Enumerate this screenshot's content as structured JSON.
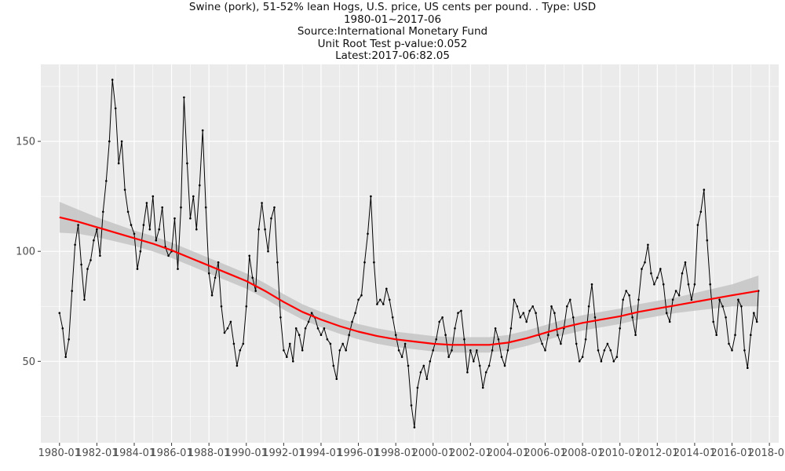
{
  "chart_data": {
    "type": "line",
    "title_lines": [
      "Swine (pork), 51-52% lean Hogs, U.S. price, US cents per pound. . Type: USD",
      "1980-01~2017-06",
      "Source:International Monetary Fund",
      "Unit Root Test p-value:0.052",
      "Latest:2017-06:82.05"
    ],
    "xlabel": "",
    "ylabel": "",
    "x_range": [
      "1979-01",
      "2018-07"
    ],
    "ylim": [
      13,
      185
    ],
    "y_ticks": [
      50,
      100,
      150
    ],
    "x_ticks": [
      "1980-01",
      "1982-01",
      "1984-01",
      "1986-01",
      "1988-01",
      "1990-01",
      "1992-01",
      "1994-01",
      "1996-01",
      "1998-01",
      "2000-01",
      "2002-01",
      "2004-01",
      "2006-01",
      "2008-01",
      "2010-01",
      "2012-01",
      "2014-01",
      "2016-01",
      "2018-01"
    ],
    "series": [
      {
        "style": "black line with point markers",
        "color": "#000000",
        "points": [
          [
            "1980-01",
            72
          ],
          [
            "1980-03",
            65
          ],
          [
            "1980-05",
            52
          ],
          [
            "1980-07",
            60
          ],
          [
            "1980-09",
            82
          ],
          [
            "1980-11",
            103
          ],
          [
            "1981-01",
            112
          ],
          [
            "1981-03",
            94
          ],
          [
            "1981-05",
            78
          ],
          [
            "1981-07",
            92
          ],
          [
            "1981-09",
            96
          ],
          [
            "1981-11",
            105
          ],
          [
            "1982-01",
            110
          ],
          [
            "1982-03",
            98
          ],
          [
            "1982-05",
            118
          ],
          [
            "1982-07",
            132
          ],
          [
            "1982-09",
            150
          ],
          [
            "1982-11",
            178
          ],
          [
            "1983-01",
            165
          ],
          [
            "1983-03",
            140
          ],
          [
            "1983-05",
            150
          ],
          [
            "1983-07",
            128
          ],
          [
            "1983-09",
            118
          ],
          [
            "1983-11",
            112
          ],
          [
            "1984-01",
            108
          ],
          [
            "1984-03",
            92
          ],
          [
            "1984-05",
            100
          ],
          [
            "1984-07",
            112
          ],
          [
            "1984-09",
            122
          ],
          [
            "1984-11",
            110
          ],
          [
            "1985-01",
            125
          ],
          [
            "1985-03",
            105
          ],
          [
            "1985-05",
            110
          ],
          [
            "1985-07",
            120
          ],
          [
            "1985-09",
            102
          ],
          [
            "1985-11",
            98
          ],
          [
            "1986-01",
            100
          ],
          [
            "1986-03",
            115
          ],
          [
            "1986-05",
            92
          ],
          [
            "1986-07",
            120
          ],
          [
            "1986-09",
            170
          ],
          [
            "1986-11",
            140
          ],
          [
            "1987-01",
            115
          ],
          [
            "1987-03",
            125
          ],
          [
            "1987-05",
            110
          ],
          [
            "1987-07",
            130
          ],
          [
            "1987-09",
            155
          ],
          [
            "1987-11",
            120
          ],
          [
            "1988-01",
            90
          ],
          [
            "1988-03",
            80
          ],
          [
            "1988-05",
            88
          ],
          [
            "1988-07",
            95
          ],
          [
            "1988-09",
            75
          ],
          [
            "1988-11",
            63
          ],
          [
            "1989-01",
            65
          ],
          [
            "1989-03",
            68
          ],
          [
            "1989-05",
            58
          ],
          [
            "1989-07",
            48
          ],
          [
            "1989-09",
            55
          ],
          [
            "1989-11",
            58
          ],
          [
            "1990-01",
            75
          ],
          [
            "1990-03",
            98
          ],
          [
            "1990-05",
            88
          ],
          [
            "1990-07",
            82
          ],
          [
            "1990-09",
            110
          ],
          [
            "1990-11",
            122
          ],
          [
            "1991-01",
            110
          ],
          [
            "1991-03",
            100
          ],
          [
            "1991-05",
            115
          ],
          [
            "1991-07",
            120
          ],
          [
            "1991-09",
            95
          ],
          [
            "1991-11",
            70
          ],
          [
            "1992-01",
            55
          ],
          [
            "1992-03",
            52
          ],
          [
            "1992-05",
            58
          ],
          [
            "1992-07",
            50
          ],
          [
            "1992-09",
            65
          ],
          [
            "1992-11",
            62
          ],
          [
            "1993-01",
            55
          ],
          [
            "1993-03",
            65
          ],
          [
            "1993-05",
            68
          ],
          [
            "1993-07",
            72
          ],
          [
            "1993-09",
            70
          ],
          [
            "1993-11",
            65
          ],
          [
            "1994-01",
            62
          ],
          [
            "1994-03",
            65
          ],
          [
            "1994-05",
            60
          ],
          [
            "1994-07",
            58
          ],
          [
            "1994-09",
            48
          ],
          [
            "1994-11",
            42
          ],
          [
            "1995-01",
            55
          ],
          [
            "1995-03",
            58
          ],
          [
            "1995-05",
            55
          ],
          [
            "1995-07",
            62
          ],
          [
            "1995-09",
            68
          ],
          [
            "1995-11",
            72
          ],
          [
            "1996-01",
            78
          ],
          [
            "1996-03",
            80
          ],
          [
            "1996-05",
            95
          ],
          [
            "1996-07",
            108
          ],
          [
            "1996-09",
            125
          ],
          [
            "1996-11",
            95
          ],
          [
            "1997-01",
            76
          ],
          [
            "1997-03",
            78
          ],
          [
            "1997-05",
            76
          ],
          [
            "1997-07",
            83
          ],
          [
            "1997-09",
            78
          ],
          [
            "1997-11",
            70
          ],
          [
            "1998-01",
            62
          ],
          [
            "1998-03",
            55
          ],
          [
            "1998-05",
            52
          ],
          [
            "1998-07",
            58
          ],
          [
            "1998-09",
            48
          ],
          [
            "1998-11",
            30
          ],
          [
            "1999-01",
            20
          ],
          [
            "1999-03",
            38
          ],
          [
            "1999-05",
            45
          ],
          [
            "1999-07",
            48
          ],
          [
            "1999-09",
            42
          ],
          [
            "1999-11",
            50
          ],
          [
            "2000-01",
            55
          ],
          [
            "2000-03",
            60
          ],
          [
            "2000-05",
            68
          ],
          [
            "2000-07",
            70
          ],
          [
            "2000-09",
            62
          ],
          [
            "2000-11",
            52
          ],
          [
            "2001-01",
            55
          ],
          [
            "2001-03",
            65
          ],
          [
            "2001-05",
            72
          ],
          [
            "2001-07",
            73
          ],
          [
            "2001-09",
            60
          ],
          [
            "2001-11",
            45
          ],
          [
            "2002-01",
            55
          ],
          [
            "2002-03",
            50
          ],
          [
            "2002-05",
            55
          ],
          [
            "2002-07",
            48
          ],
          [
            "2002-09",
            38
          ],
          [
            "2002-11",
            45
          ],
          [
            "2003-01",
            48
          ],
          [
            "2003-03",
            55
          ],
          [
            "2003-05",
            65
          ],
          [
            "2003-07",
            60
          ],
          [
            "2003-09",
            52
          ],
          [
            "2003-11",
            48
          ],
          [
            "2004-01",
            55
          ],
          [
            "2004-03",
            65
          ],
          [
            "2004-05",
            78
          ],
          [
            "2004-07",
            75
          ],
          [
            "2004-09",
            70
          ],
          [
            "2004-11",
            72
          ],
          [
            "2005-01",
            68
          ],
          [
            "2005-03",
            73
          ],
          [
            "2005-05",
            75
          ],
          [
            "2005-07",
            72
          ],
          [
            "2005-09",
            62
          ],
          [
            "2005-11",
            58
          ],
          [
            "2006-01",
            55
          ],
          [
            "2006-03",
            62
          ],
          [
            "2006-05",
            75
          ],
          [
            "2006-07",
            72
          ],
          [
            "2006-09",
            62
          ],
          [
            "2006-11",
            58
          ],
          [
            "2007-01",
            65
          ],
          [
            "2007-03",
            75
          ],
          [
            "2007-05",
            78
          ],
          [
            "2007-07",
            70
          ],
          [
            "2007-09",
            58
          ],
          [
            "2007-11",
            50
          ],
          [
            "2008-01",
            52
          ],
          [
            "2008-03",
            60
          ],
          [
            "2008-05",
            75
          ],
          [
            "2008-07",
            85
          ],
          [
            "2008-09",
            70
          ],
          [
            "2008-11",
            55
          ],
          [
            "2009-01",
            50
          ],
          [
            "2009-03",
            55
          ],
          [
            "2009-05",
            58
          ],
          [
            "2009-07",
            55
          ],
          [
            "2009-09",
            50
          ],
          [
            "2009-11",
            52
          ],
          [
            "2010-01",
            65
          ],
          [
            "2010-03",
            78
          ],
          [
            "2010-05",
            82
          ],
          [
            "2010-07",
            80
          ],
          [
            "2010-09",
            70
          ],
          [
            "2010-11",
            62
          ],
          [
            "2011-01",
            78
          ],
          [
            "2011-03",
            92
          ],
          [
            "2011-05",
            95
          ],
          [
            "2011-07",
            103
          ],
          [
            "2011-09",
            90
          ],
          [
            "2011-11",
            85
          ],
          [
            "2012-01",
            88
          ],
          [
            "2012-03",
            92
          ],
          [
            "2012-05",
            85
          ],
          [
            "2012-07",
            72
          ],
          [
            "2012-09",
            68
          ],
          [
            "2012-11",
            78
          ],
          [
            "2013-01",
            82
          ],
          [
            "2013-03",
            80
          ],
          [
            "2013-05",
            90
          ],
          [
            "2013-07",
            95
          ],
          [
            "2013-09",
            85
          ],
          [
            "2013-11",
            78
          ],
          [
            "2014-01",
            85
          ],
          [
            "2014-03",
            112
          ],
          [
            "2014-05",
            118
          ],
          [
            "2014-07",
            128
          ],
          [
            "2014-09",
            105
          ],
          [
            "2014-11",
            85
          ],
          [
            "2015-01",
            68
          ],
          [
            "2015-03",
            62
          ],
          [
            "2015-05",
            78
          ],
          [
            "2015-07",
            75
          ],
          [
            "2015-09",
            70
          ],
          [
            "2015-11",
            58
          ],
          [
            "2016-01",
            55
          ],
          [
            "2016-03",
            62
          ],
          [
            "2016-05",
            78
          ],
          [
            "2016-07",
            75
          ],
          [
            "2016-09",
            55
          ],
          [
            "2016-11",
            47
          ],
          [
            "2017-01",
            62
          ],
          [
            "2017-03",
            72
          ],
          [
            "2017-05",
            68
          ],
          [
            "2017-06",
            82.05
          ]
        ]
      },
      {
        "style": "red smoothed trend with grey confidence band",
        "color": "#ff0000",
        "band_color": "#c4c4c4",
        "points": [
          [
            "1980-01",
            115.5
          ],
          [
            "1981-01",
            113.5
          ],
          [
            "1982-01",
            111
          ],
          [
            "1983-01",
            108.5
          ],
          [
            "1984-01",
            106
          ],
          [
            "1985-01",
            103.5
          ],
          [
            "1986-01",
            100.5
          ],
          [
            "1987-01",
            97
          ],
          [
            "1988-01",
            93.5
          ],
          [
            "1989-01",
            90
          ],
          [
            "1990-01",
            86.5
          ],
          [
            "1991-01",
            82
          ],
          [
            "1992-01",
            77
          ],
          [
            "1993-01",
            72.5
          ],
          [
            "1994-01",
            69
          ],
          [
            "1995-01",
            66
          ],
          [
            "1996-01",
            63.5
          ],
          [
            "1997-01",
            61.5
          ],
          [
            "1998-01",
            60
          ],
          [
            "1999-01",
            59
          ],
          [
            "2000-01",
            58
          ],
          [
            "2001-01",
            57.5
          ],
          [
            "2002-01",
            57.5
          ],
          [
            "2003-01",
            57.5
          ],
          [
            "2004-01",
            58.5
          ],
          [
            "2005-01",
            60.5
          ],
          [
            "2006-01",
            63
          ],
          [
            "2007-01",
            65.5
          ],
          [
            "2008-01",
            67.5
          ],
          [
            "2009-01",
            69
          ],
          [
            "2010-01",
            70.5
          ],
          [
            "2011-01",
            72.5
          ],
          [
            "2012-01",
            74
          ],
          [
            "2013-01",
            75.5
          ],
          [
            "2014-01",
            77
          ],
          [
            "2015-01",
            78.5
          ],
          [
            "2016-01",
            80
          ],
          [
            "2017-06",
            82
          ]
        ],
        "band_halfwidth": [
          7,
          5.5,
          4.5,
          4,
          3.5,
          3.5,
          3.5,
          3.5,
          3.5,
          3.5,
          3.5,
          3.5,
          3.5,
          3.5,
          3.5,
          3.5,
          3.5,
          3.5,
          3.5,
          3.5,
          3.5,
          3.5,
          3.5,
          3.5,
          3.5,
          3.5,
          3.5,
          3.5,
          3.5,
          3.5,
          3.5,
          3.5,
          3.5,
          3.5,
          4,
          4.5,
          5,
          7
        ]
      }
    ],
    "grid": true,
    "legend": "none",
    "colors": {
      "panel_background": "#ebebeb",
      "grid": "#ffffff",
      "tick_text": "#4d4d4d"
    }
  }
}
